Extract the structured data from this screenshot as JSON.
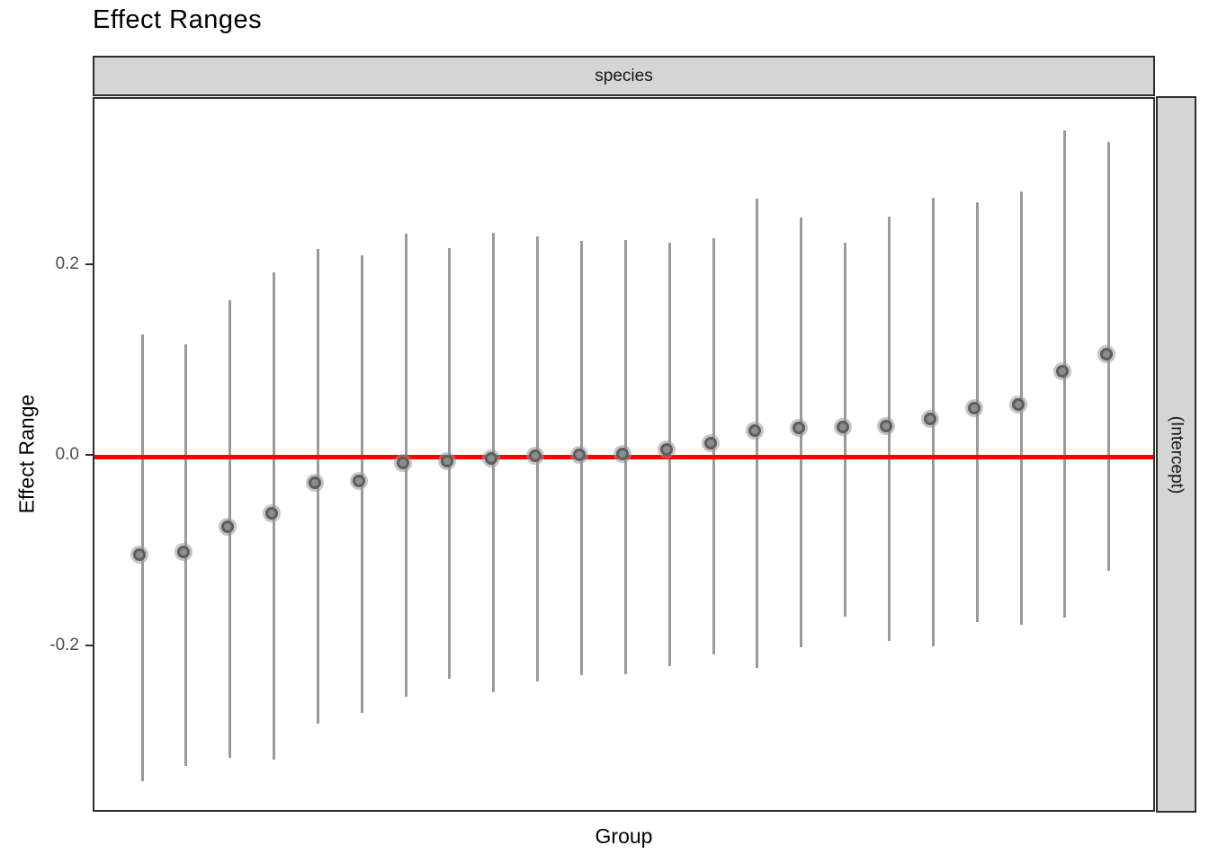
{
  "page": {
    "title": "Effect Ranges"
  },
  "chart_data": {
    "type": "scatter",
    "mark": "pointrange",
    "title": "Effect Ranges",
    "facet_top_label": "species",
    "facet_right_label": "(Intercept)",
    "xlabel": "Group",
    "ylabel": "Effect Range",
    "grid": false,
    "legend": "none",
    "ylim": [
      -0.375,
      0.375
    ],
    "x_tick_labels_shown": false,
    "groups": [
      1,
      2,
      3,
      4,
      5,
      6,
      7,
      8,
      9,
      10,
      11,
      12,
      13,
      14,
      15,
      16,
      17,
      18,
      19,
      20,
      21,
      22,
      23
    ],
    "series": [
      {
        "name": "estimate",
        "values": [
          -0.106,
          -0.103,
          -0.076,
          -0.062,
          -0.03,
          -0.028,
          -0.009,
          -0.008,
          -0.005,
          -0.002,
          -0.001,
          0.0,
          0.005,
          0.011,
          0.025,
          0.027,
          0.028,
          0.029,
          0.037,
          0.048,
          0.052,
          0.087,
          0.105
        ]
      },
      {
        "name": "range_low",
        "values": [
          -0.341,
          -0.325,
          -0.316,
          -0.318,
          -0.28,
          -0.269,
          -0.252,
          -0.233,
          -0.247,
          -0.236,
          -0.229,
          -0.228,
          -0.22,
          -0.208,
          -0.222,
          -0.2,
          -0.168,
          -0.193,
          -0.199,
          -0.174,
          -0.176,
          -0.169,
          -0.12
        ]
      },
      {
        "name": "range_high",
        "values": [
          0.128,
          0.118,
          0.164,
          0.193,
          0.218,
          0.211,
          0.234,
          0.219,
          0.235,
          0.231,
          0.226,
          0.227,
          0.225,
          0.229,
          0.271,
          0.251,
          0.225,
          0.252,
          0.272,
          0.267,
          0.278,
          0.342,
          0.33
        ]
      }
    ],
    "yticks": [
      {
        "label": "0.2",
        "value": 0.2
      },
      {
        "label": "0.0",
        "value": 0.0
      },
      {
        "label": "-0.2",
        "value": -0.2
      }
    ],
    "reference_line": {
      "value": 0.0,
      "color": "#ff0000"
    },
    "colors": {
      "point_fill": "#8d8d8d",
      "point_ring": "#5e5e5e",
      "point_halo": "rgba(150,150,150,0.55)",
      "error_bar": "#9a9a9a",
      "strip_background": "#d5d5d5",
      "panel_border": "#2e2e2e",
      "tick_label": "#4d4d4d",
      "reference": "#ff0000"
    }
  }
}
